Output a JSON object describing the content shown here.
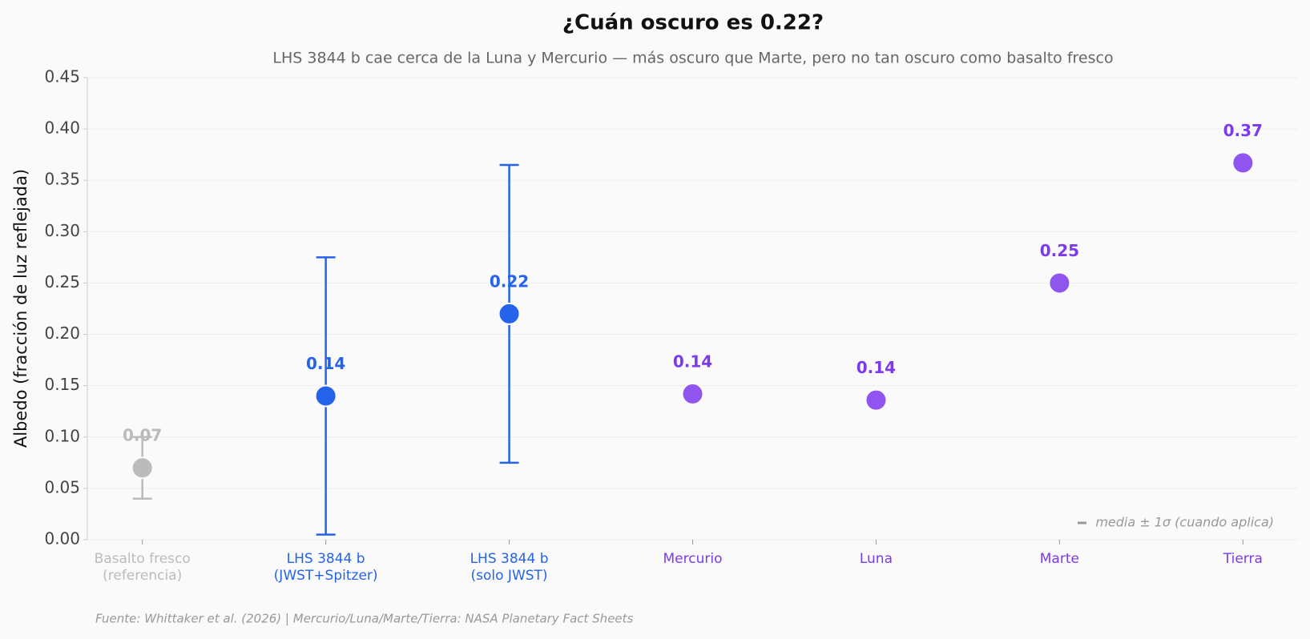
{
  "chart_data": {
    "type": "errorbar",
    "title": "¿Cuán oscuro es 0.22?",
    "subtitle": "LHS 3844 b cae cerca de la Luna y Mercurio — más oscuro que Marte, pero no tan oscuro como basalto fresco",
    "ylabel": "Albedo (fracción de luz reflejada)",
    "categories": [
      "Basalto fresco\n(referencia)",
      "LHS 3844 b\n(JWST+Spitzer)",
      "LHS 3844 b\n(solo JWST)",
      "Mercurio",
      "Luna",
      "Marte",
      "Tierra"
    ],
    "values": [
      0.07,
      0.14,
      0.22,
      0.142,
      0.136,
      0.25,
      0.367
    ],
    "value_labels": [
      "0.07",
      "0.14",
      "0.22",
      "0.14",
      "0.14",
      "0.25",
      "0.37"
    ],
    "errors": [
      0.03,
      0.135,
      0.145,
      null,
      null,
      null,
      null
    ],
    "colors": [
      "#bbbbbb",
      "#2563eb",
      "#2563eb",
      "#9155ef",
      "#9155ef",
      "#9155ef",
      "#9155ef"
    ],
    "label_colors": [
      "#bbbbbb",
      "#2563eb",
      "#2563eb",
      "#7c3aed",
      "#7c3aed",
      "#7c3aed",
      "#7c3aed"
    ],
    "ylim": [
      0,
      0.45
    ],
    "yticks": [
      {
        "value": 0,
        "label": "0.00"
      },
      0.05,
      {
        "value": 0.1,
        "label": "0.10"
      },
      0.15,
      {
        "value": 0.2,
        "label": "0.20"
      },
      0.25,
      {
        "value": 0.3,
        "label": "0.30"
      },
      0.35,
      {
        "value": 0.4,
        "label": "0.40"
      },
      0.45
    ],
    "grid": true,
    "legend_note": "media ± 1σ (cuando aplica)",
    "source": "Fuente: Whittaker et al. (2026) | Mercurio/Luna/Marte/Tierra: NASA Planetary Fact Sheets"
  }
}
